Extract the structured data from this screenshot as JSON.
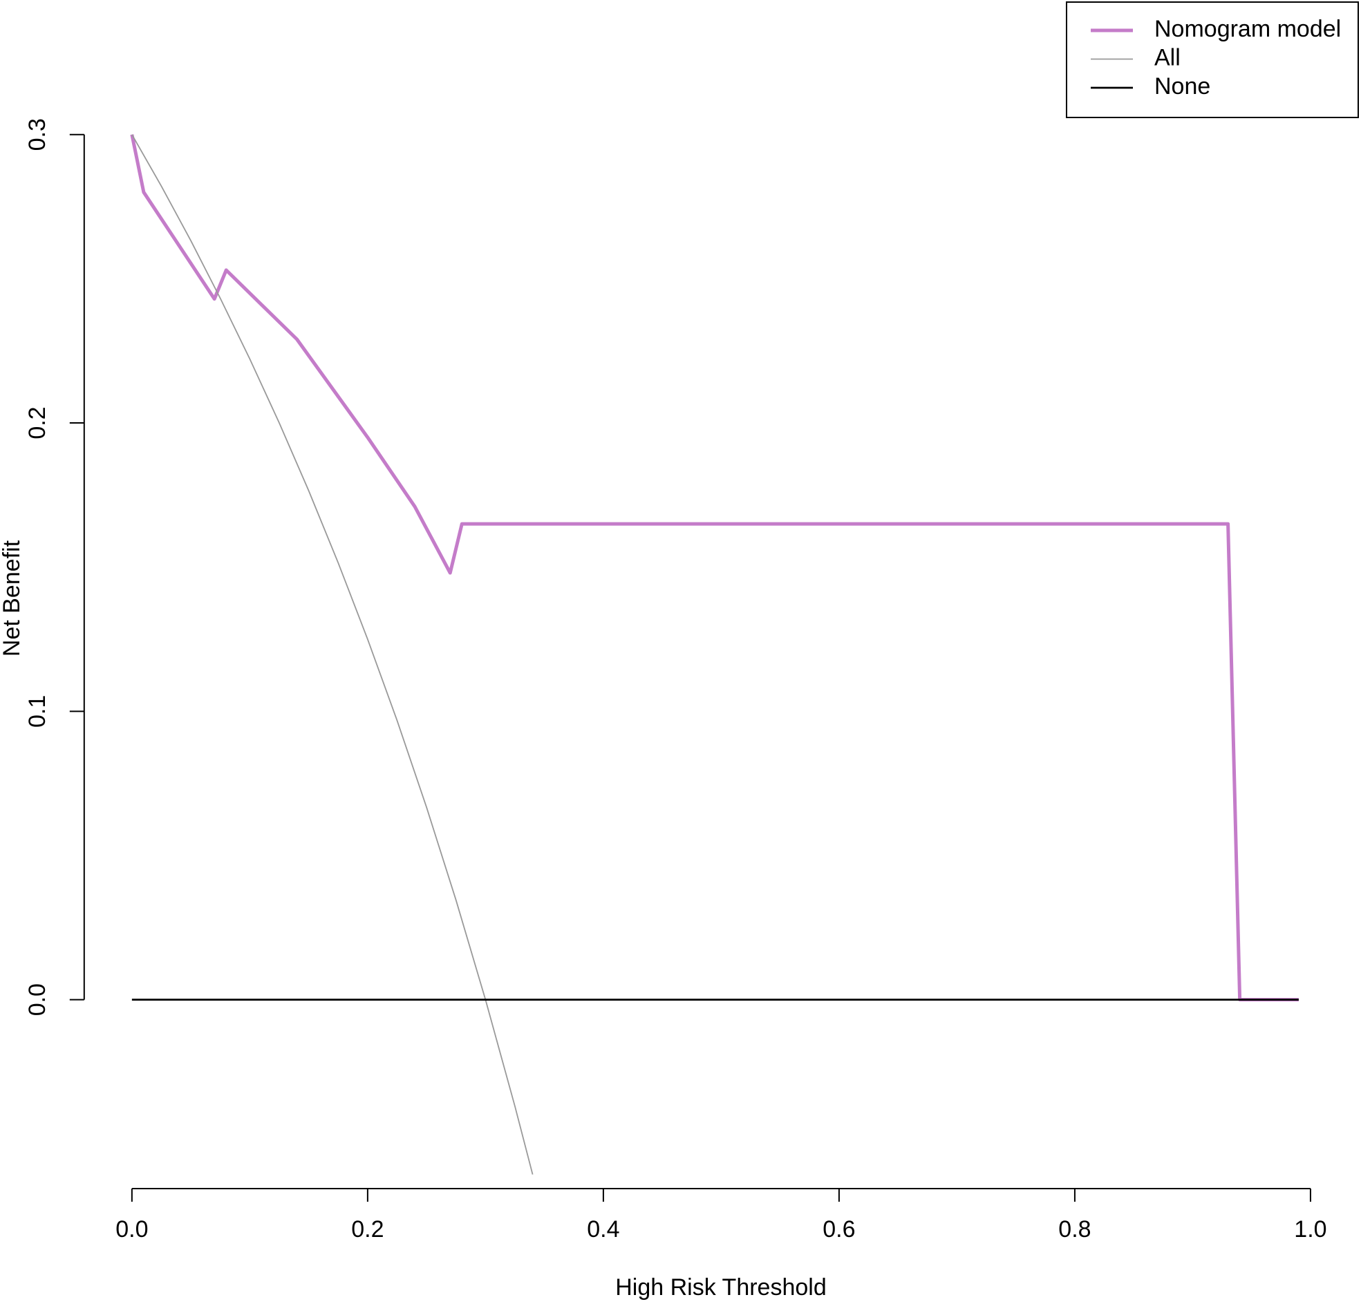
{
  "chart_data": {
    "type": "line",
    "xlabel": "High Risk Threshold",
    "ylabel": "Net Benefit",
    "xlim": [
      -0.0405,
      1.0405
    ],
    "ylim": [
      -0.0655,
      0.3146
    ],
    "xticks": [
      {
        "value": 0,
        "label": "0.0"
      },
      0.2,
      0.4,
      0.6,
      0.8,
      {
        "value": 1,
        "label": "1.0"
      }
    ],
    "yticks": [
      {
        "value": 0,
        "label": "0.0"
      },
      0.1,
      0.2,
      0.3
    ],
    "legend": "top-right",
    "series": [
      {
        "name": "Nomogram model",
        "color": "#c47cc9",
        "x": [
          0,
          0.01,
          0.07,
          0.08,
          0.14,
          0.2,
          0.24,
          0.27,
          0.28,
          0.93,
          0.94,
          0.99
        ],
        "values": [
          0.3,
          0.28,
          0.243,
          0.253,
          0.229,
          0.195,
          0.171,
          0.148,
          0.165,
          0.165,
          0,
          0
        ]
      },
      {
        "name": "All",
        "color": "#999999",
        "x": [
          0,
          0.025,
          0.05,
          0.075,
          0.1,
          0.125,
          0.15,
          0.175,
          0.2,
          0.225,
          0.25,
          0.275,
          0.3,
          0.325,
          0.34
        ],
        "values": [
          0.3,
          0.2821,
          0.2632,
          0.2432,
          0.2222,
          0.2,
          0.1765,
          0.1515,
          0.125,
          0.0968,
          0.0667,
          0.0345,
          0,
          -0.037,
          -0.0606
        ]
      },
      {
        "name": "None",
        "color": "#000000",
        "x": [
          0,
          0.99
        ],
        "values": [
          0,
          0
        ]
      }
    ]
  }
}
